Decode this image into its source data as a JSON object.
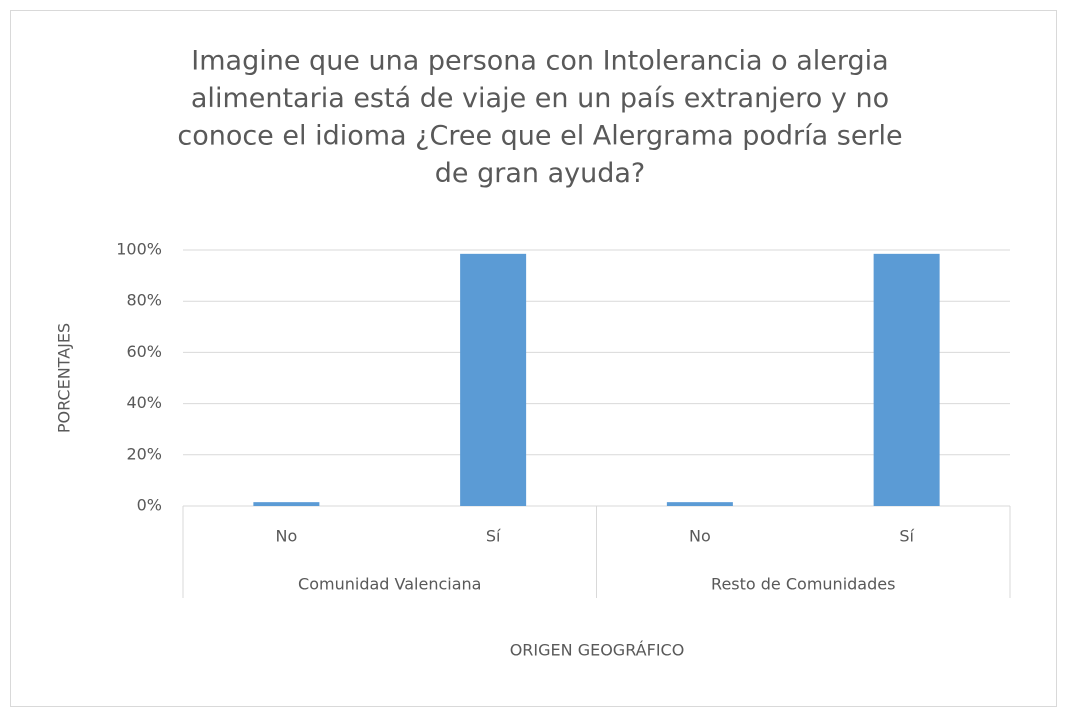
{
  "chart_data": {
    "type": "bar",
    "title": [
      "Imagine que una persona con Intolerancia o alergia",
      "alimentaria está de viaje en un país extranjero y no",
      "conoce el idioma ¿Cree que el Alergrama podría serle",
      "de gran ayuda?"
    ],
    "categories": [
      "No",
      "Sí",
      "No",
      "Sí"
    ],
    "groups": [
      "Comunidad Valenciana",
      "Resto de Comunidades"
    ],
    "values": [
      1.5,
      98.5,
      1.5,
      98.5
    ],
    "color": "#5b9bd5",
    "ylim": [
      0,
      100
    ],
    "yticks": [
      {
        "value": 0,
        "label": "0%"
      },
      {
        "value": 20,
        "label": "20%"
      },
      {
        "value": 40,
        "label": "40%"
      },
      {
        "value": 60,
        "label": "60%"
      },
      {
        "value": 80,
        "label": "80%"
      },
      {
        "value": 100,
        "label": "100%"
      }
    ],
    "grid": true,
    "x_label": "ORIGEN GEOGRÁFICO",
    "y_label": "PORCENTAJES"
  }
}
